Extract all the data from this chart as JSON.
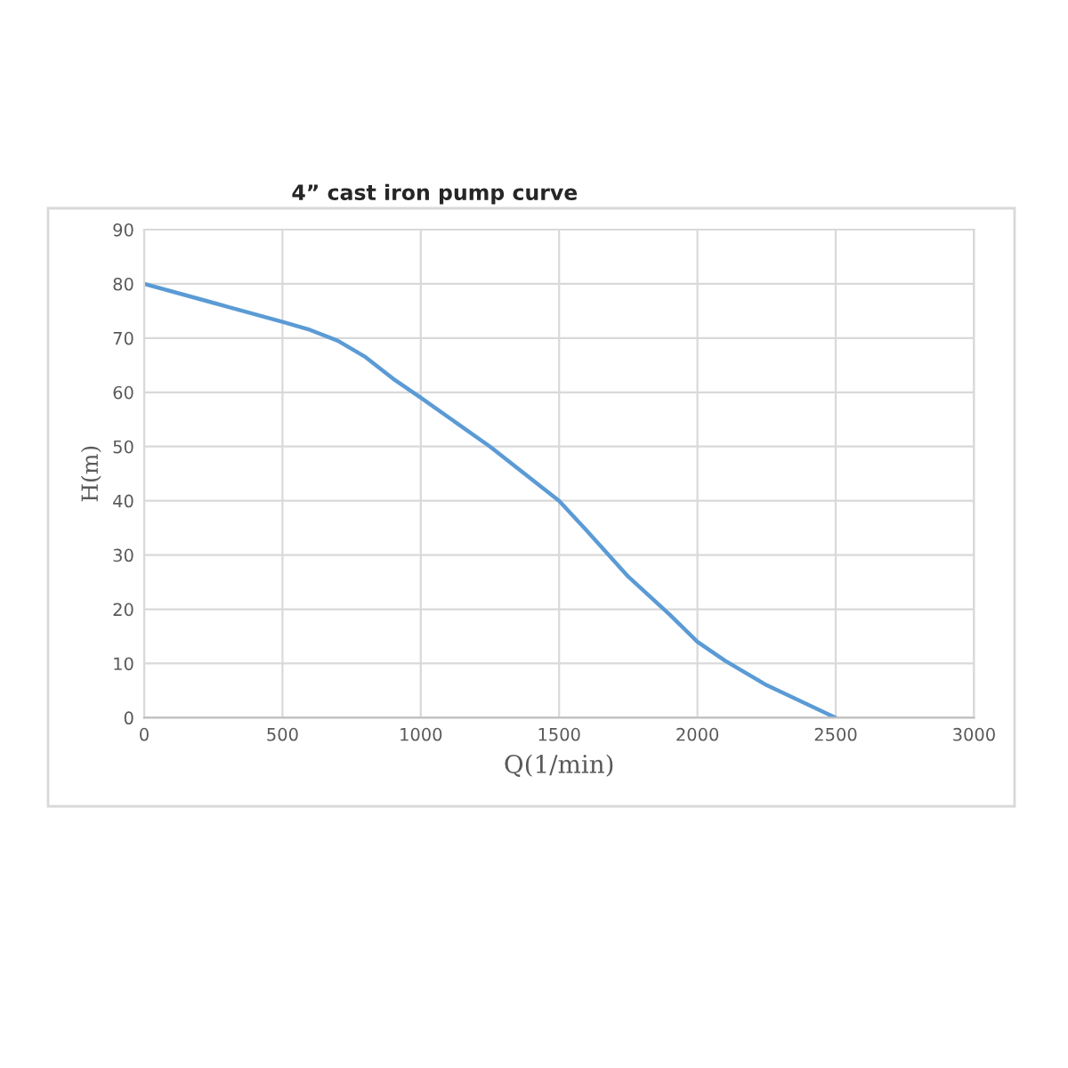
{
  "chart_data": {
    "type": "line",
    "title": "4” cast iron pump curve",
    "xlabel": "Q(1/min)",
    "ylabel": "H(m)",
    "series": [
      {
        "color": "#5b9bd5",
        "x": [
          0,
          250,
          500,
          600,
          700,
          800,
          900,
          1000,
          1250,
          1500,
          1600,
          1750,
          1900,
          2000,
          2100,
          2250,
          2500
        ],
        "values": [
          80,
          76.5,
          73,
          71.5,
          69.5,
          66.5,
          62.5,
          59,
          50,
          40,
          34.5,
          26,
          19,
          14,
          10.5,
          6,
          0
        ]
      }
    ],
    "xlim": [
      0,
      3000
    ],
    "xticks": [
      0,
      500,
      1000,
      1500,
      2000,
      2500,
      3000
    ],
    "ylim": [
      0,
      90
    ],
    "yticks": [
      0,
      10,
      20,
      30,
      40,
      50,
      60,
      70,
      80,
      90
    ],
    "grid": true,
    "marker": "none",
    "line_style": "solid"
  }
}
